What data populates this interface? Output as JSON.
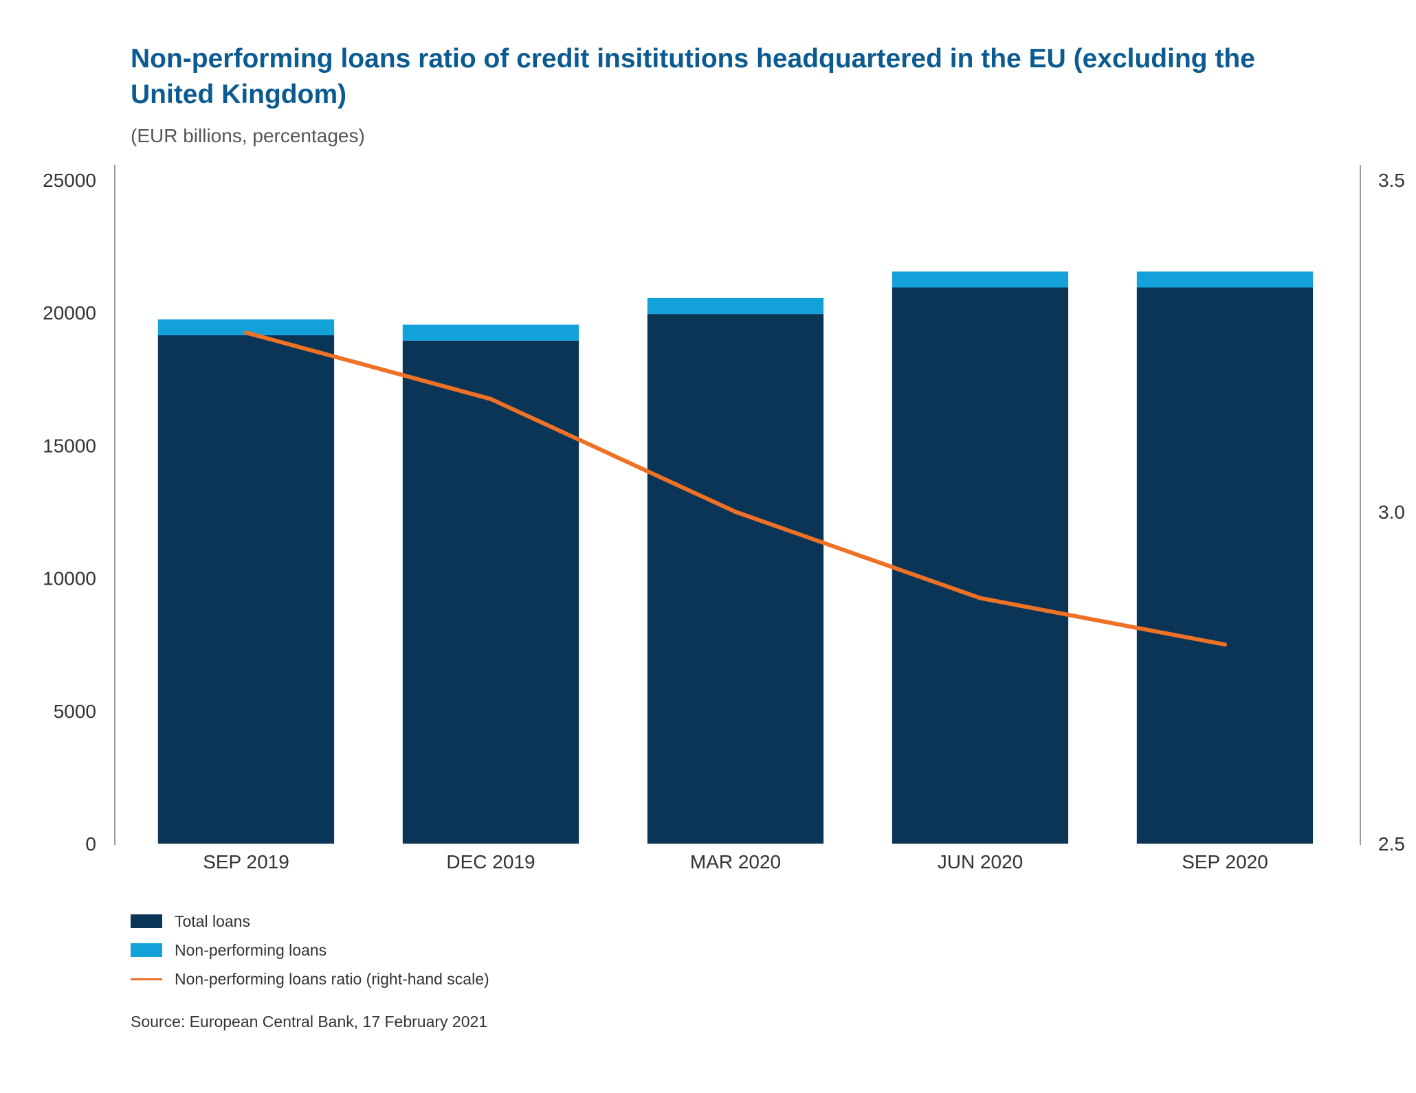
{
  "chart_data": {
    "type": "bar",
    "title": "Non-performing loans ratio of credit insititutions headquartered in the EU (excluding the United Kingdom)",
    "subtitle": "(EUR billions, percentages)",
    "categories": [
      "SEP 2019",
      "DEC 2019",
      "MAR 2020",
      "JUN 2020",
      "SEP 2020"
    ],
    "stacked": true,
    "series": [
      {
        "name": "Total loans",
        "type": "bar",
        "axis": "left",
        "color": "#0a3557",
        "values": [
          19150,
          18950,
          19950,
          20950,
          20950
        ]
      },
      {
        "name": "Non-performing loans",
        "type": "bar",
        "axis": "left",
        "color": "#12a1d9",
        "values": [
          600,
          600,
          600,
          600,
          600
        ]
      },
      {
        "name": "Non-performing loans ratio (right-hand scale)",
        "type": "line",
        "axis": "right",
        "color": "#ee7126",
        "values": [
          3.27,
          3.17,
          3.0,
          2.87,
          2.8
        ]
      }
    ],
    "y_left": {
      "min": 0,
      "max": 25000,
      "ticks": [
        "0",
        "5000",
        "10000",
        "15000",
        "20000",
        "25000"
      ]
    },
    "y_right": {
      "min": 2.5,
      "max": 3.5,
      "ticks": [
        "2.5",
        "3.0",
        "3.5"
      ]
    },
    "grid": false,
    "legend_position": "bottom-left",
    "source": "Source: European Central Bank, 17 February 2021"
  }
}
